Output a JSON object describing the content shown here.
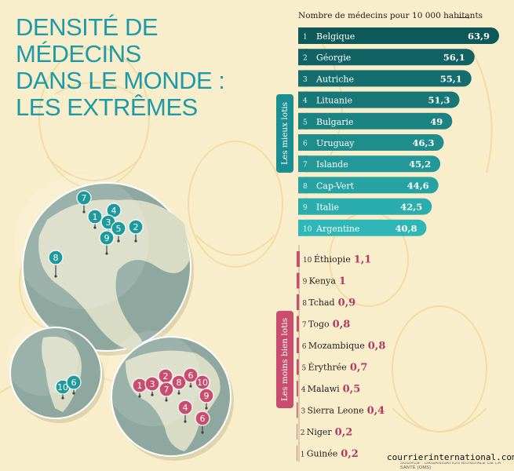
{
  "title_lines": [
    "Densité de médecins",
    "dans le monde :",
    "les extrêmes"
  ],
  "unit_label": "Nombre de médecins pour 10 000 habitants",
  "unit_arrow": "⟶",
  "colors": {
    "title": "#1d9aa7",
    "top_dark": "#0d5959",
    "top_light": "#2fb7b7",
    "bottom_bar": "#c94d6e",
    "bottom_text": "#b03a62",
    "globe_land": "#d9dcc5",
    "globe_ocean": "#8ea8a0"
  },
  "chart_data": [
    {
      "type": "bar",
      "group": "Les mieux lotis",
      "orientation": "horizontal",
      "categories": [
        "Belgique",
        "Géorgie",
        "Autriche",
        "Lituanie",
        "Bulgarie",
        "Uruguay",
        "Islande",
        "Cap-Vert",
        "Italie",
        "Argentine"
      ],
      "ranks": [
        "1",
        "2",
        "3",
        "4",
        "5",
        "6",
        "7",
        "8",
        "9",
        "10"
      ],
      "values": [
        63.9,
        56.1,
        55.1,
        51.3,
        49,
        46.3,
        45.2,
        44.6,
        42.5,
        40.8
      ],
      "value_labels": [
        "63,9",
        "56,1",
        "55,1",
        "51,3",
        "49",
        "46,3",
        "45,2",
        "44,6",
        "42,5",
        "40,8"
      ]
    },
    {
      "type": "bar",
      "group": "Les moins bien lotis",
      "orientation": "horizontal",
      "categories": [
        "Éthiopie",
        "Kenya",
        "Tchad",
        "Togo",
        "Mozambique",
        "Érythrée",
        "Malawi",
        "Sierra Leone",
        "Niger",
        "Guinée"
      ],
      "ranks": [
        "10",
        "9",
        "8",
        "7",
        "6",
        "5",
        "4",
        "3",
        "2",
        "1"
      ],
      "values": [
        1.1,
        1,
        0.9,
        0.8,
        0.8,
        0.7,
        0.5,
        0.4,
        0.2,
        0.2
      ],
      "value_labels": [
        "1,1",
        "1",
        "0,9",
        "0,8",
        "0,8",
        "0,7",
        "0,5",
        "0,4",
        "0,2",
        "0,2"
      ]
    }
  ],
  "map_pins": {
    "europe": [
      "7",
      "4",
      "1",
      "3",
      "5",
      "2",
      "9",
      "8"
    ],
    "south_america": [
      "10",
      "6"
    ],
    "africa": [
      "1",
      "3",
      "2",
      "7",
      "8",
      "6",
      "10",
      "9",
      "4",
      "6"
    ]
  },
  "source": "SOURCE : ORGANISATION MONDIALE DE LA SANTÉ (OMS)",
  "credit": "courrierinternational.com"
}
